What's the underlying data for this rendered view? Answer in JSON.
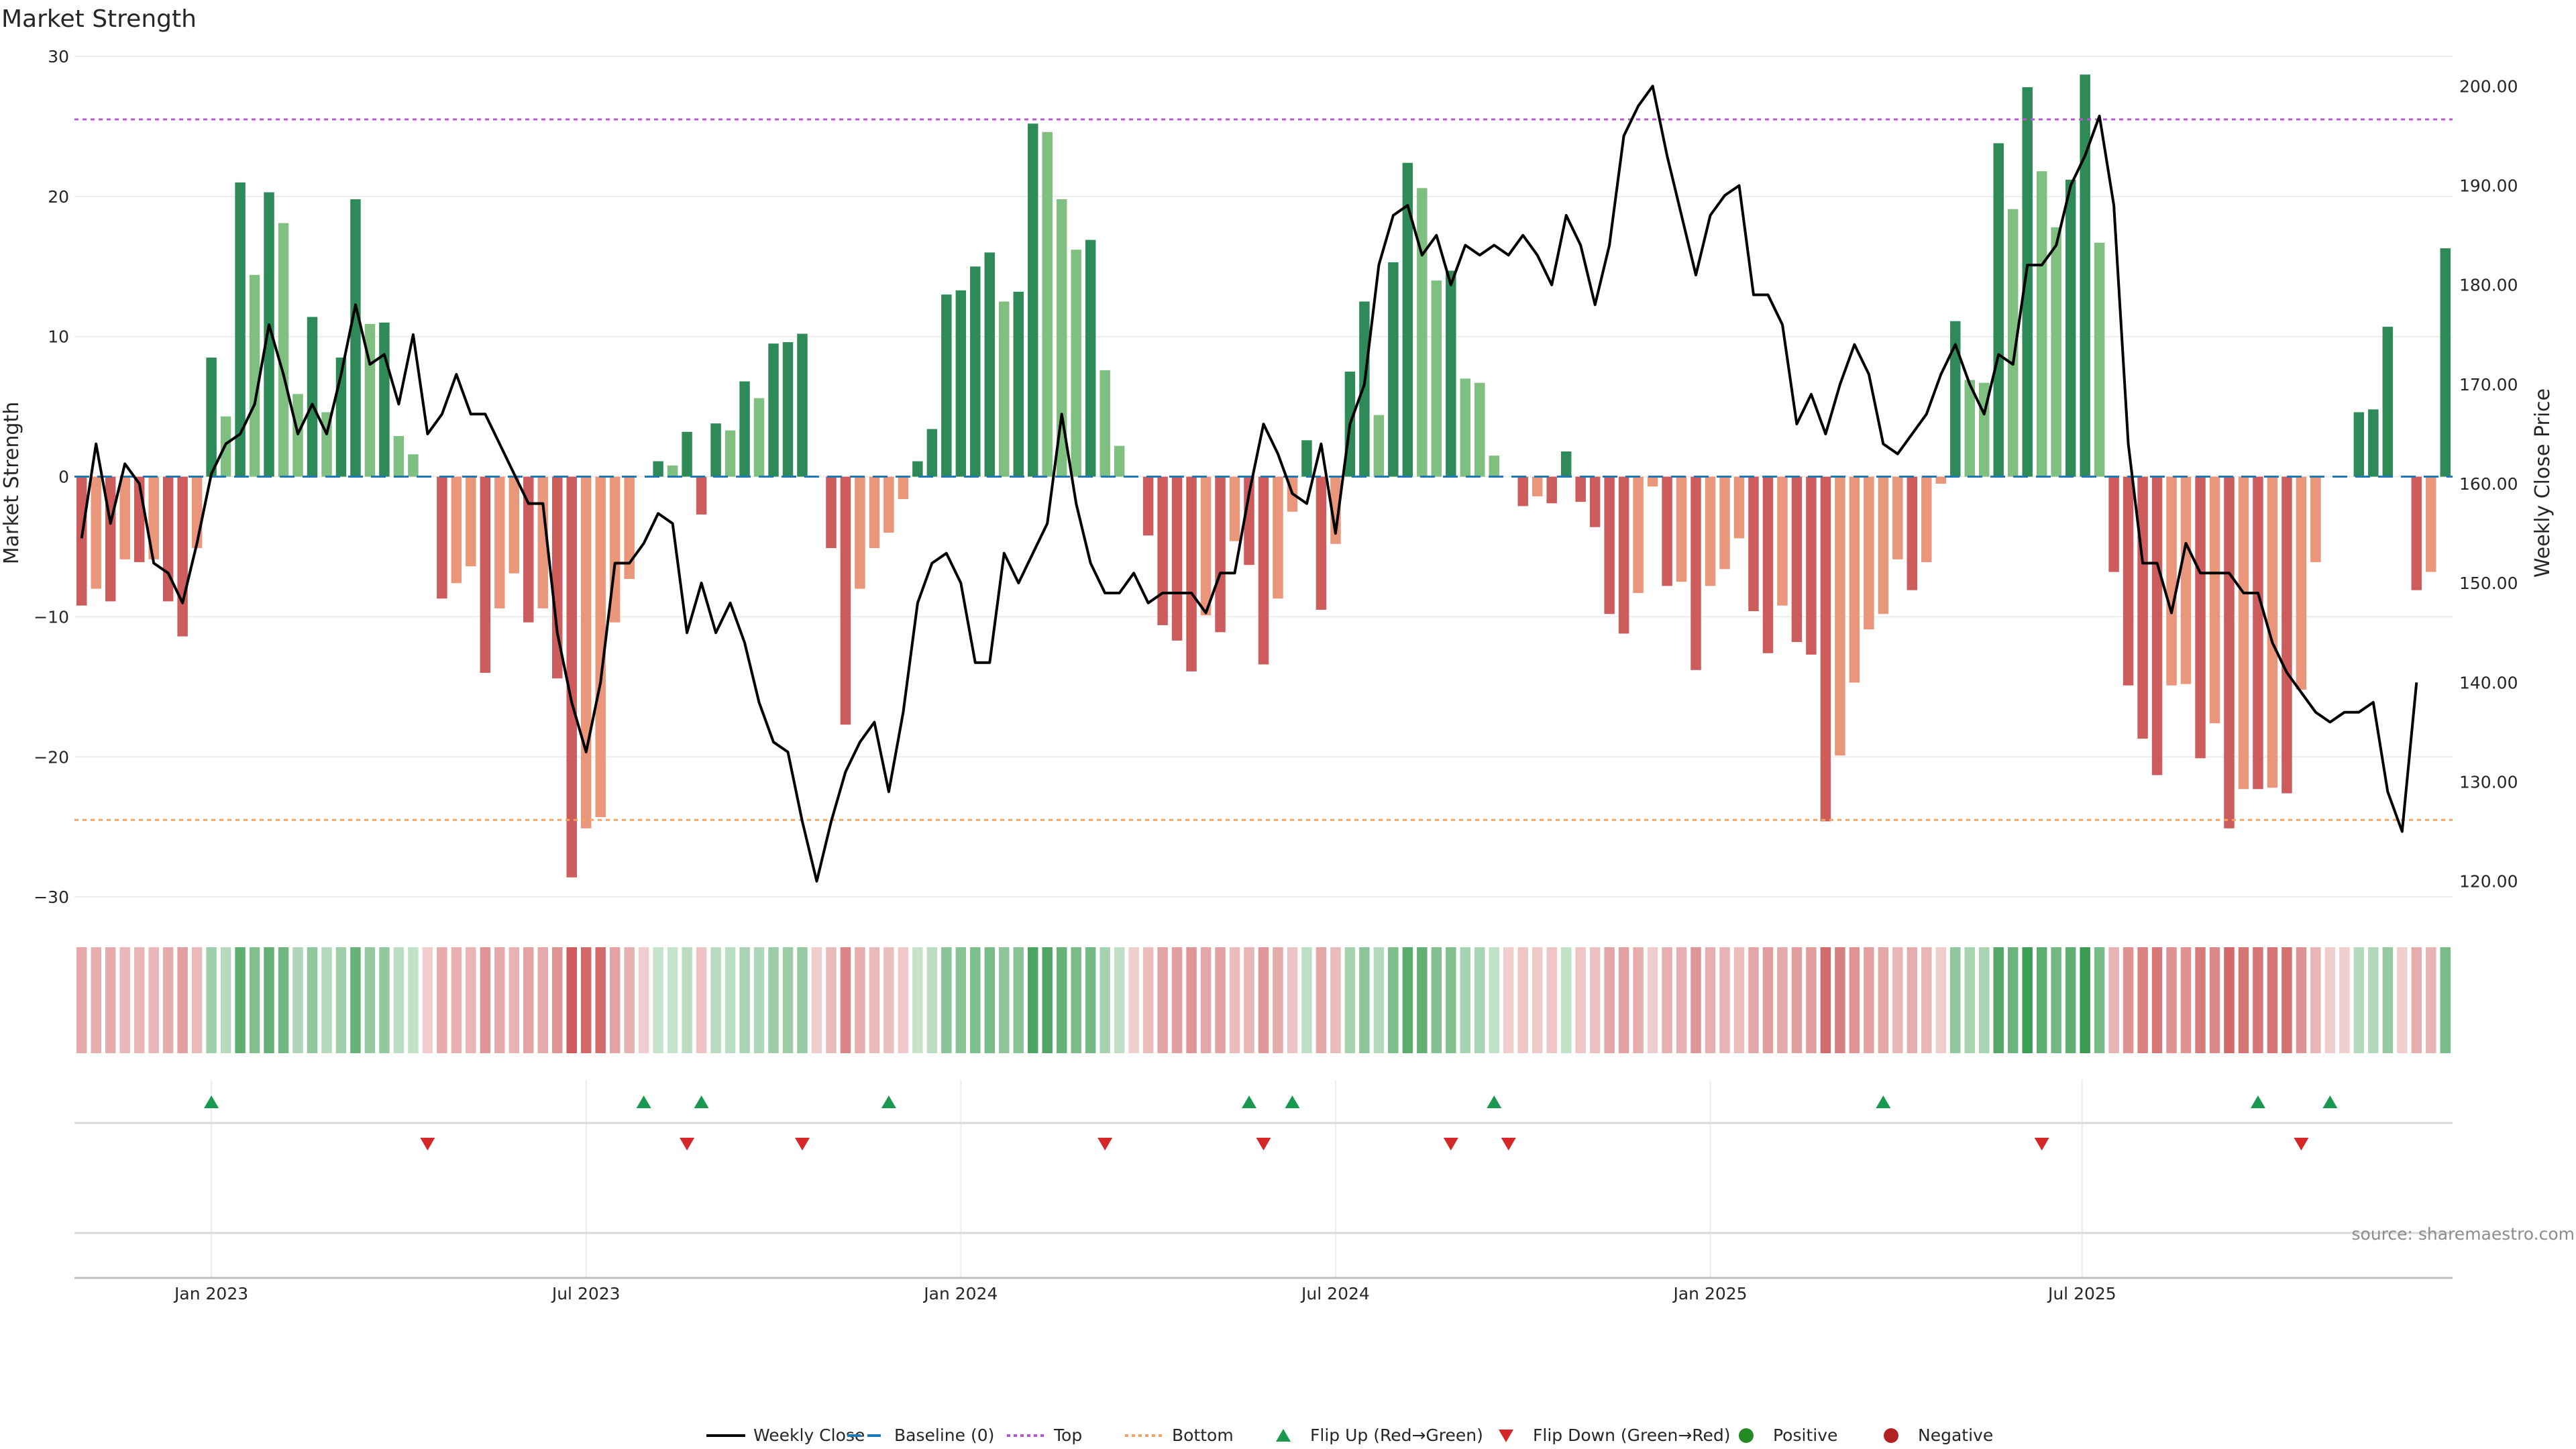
{
  "chart_data": {
    "type": "bar",
    "title": "Market Strength",
    "ylabel_left": "Market Strength",
    "ylabel_right": "Weekly Close Price",
    "ylim_left": [
      -31,
      30
    ],
    "ylim_right": [
      117,
      203
    ],
    "y_ticks_left": [
      "30",
      "20",
      "10",
      "0",
      "−10",
      "−20",
      "−30"
    ],
    "y_ticks_right": [
      "200.00",
      "190.00",
      "180.00",
      "170.00",
      "160.00",
      "150.00",
      "140.00",
      "130.00",
      "120.00"
    ],
    "x_ticks": [
      "Jan 2023",
      "Jul 2023",
      "Jan 2024",
      "Jul 2024",
      "Jan 2025",
      "Jul 2025"
    ],
    "x_tick_weeks": [
      9.5,
      35.5,
      61.5,
      87.5,
      113.5,
      139.3
    ],
    "top_level": 25.5,
    "bottom_level": -24.5,
    "colors": {
      "strong_green": "#2e8b57",
      "light_green": "#7fbf7f",
      "strong_red": "#cd5c5c",
      "light_red": "#e9967a",
      "line": "#000000",
      "baseline": "#1f77b4",
      "top": "#ba55d3",
      "bottom": "#f4a460",
      "flip_up": "#1a9850",
      "flip_down": "#d62728",
      "positive": "#228b22",
      "negative": "#b22222"
    },
    "strength": [
      -9.2,
      -8,
      -8.9,
      -5.9,
      -6.1,
      -5.9,
      -8.9,
      -11.4,
      -5.1,
      8.5,
      4.3,
      21,
      14.4,
      20.3,
      18.1,
      5.9,
      11.4,
      4.6,
      8.5,
      19.8,
      10.9,
      11,
      2.9,
      1.6,
      0,
      -8.7,
      -7.6,
      -6.4,
      -14,
      -9.4,
      -6.9,
      -10.4,
      -9.4,
      -14.4,
      -28.6,
      -25.1,
      -24.3,
      -10.4,
      -7.3,
      0,
      1.1,
      0.8,
      3.2,
      -2.7,
      3.8,
      3.3,
      6.8,
      5.6,
      9.5,
      9.6,
      10.2,
      0,
      -5.1,
      -17.7,
      -8,
      -5.1,
      -4,
      -1.6,
      1.1,
      3.4,
      13,
      13.3,
      15,
      16,
      12.5,
      13.2,
      25.2,
      24.6,
      19.8,
      16.2,
      16.9,
      7.6,
      2.2,
      0,
      -4.2,
      -10.6,
      -11.7,
      -13.9,
      -9.9,
      -11.1,
      -4.6,
      -6.3,
      -13.4,
      -8.7,
      -2.5,
      2.6,
      -9.5,
      -4.8,
      7.5,
      12.5,
      4.4,
      15.3,
      22.4,
      20.6,
      14,
      14.7,
      7,
      6.7,
      1.5,
      0,
      -2.1,
      -1.4,
      -1.9,
      1.8,
      -1.8,
      -3.6,
      -9.8,
      -11.2,
      -8.3,
      -0.7,
      -7.8,
      -7.5,
      -13.8,
      -7.8,
      -6.6,
      -4.4,
      -9.6,
      -12.6,
      -9.2,
      -11.8,
      -12.7,
      -24.6,
      -19.9,
      -14.7,
      -10.9,
      -9.8,
      -5.9,
      -8.1,
      -6.1,
      -0.5,
      11.1,
      6.9,
      6.7,
      23.8,
      19.1,
      27.8,
      21.8,
      17.8,
      21.2,
      28.7,
      16.7,
      -6.8,
      -14.9,
      -18.7,
      -21.3,
      -14.9,
      -14.8,
      -20.1,
      -17.6,
      -25.1,
      -22.3,
      -22.3,
      -22.2,
      -22.6,
      -15.2,
      -6.1,
      0,
      0,
      4.6,
      4.8,
      10.7,
      0,
      -8.1,
      -6.8,
      16.3
    ],
    "weekly_close": [
      154.5,
      164,
      156,
      162,
      160,
      152,
      151,
      148,
      154,
      161,
      164,
      165,
      168,
      176,
      171,
      165,
      168,
      165,
      171,
      178,
      172,
      173,
      168,
      175,
      165,
      167,
      171,
      167,
      167,
      164,
      161,
      158,
      158,
      145,
      138,
      133,
      140,
      152,
      152,
      154,
      157,
      156,
      145,
      150,
      145,
      148,
      144,
      138,
      134,
      133,
      126,
      120,
      126,
      131,
      134,
      136,
      129,
      137,
      148,
      152,
      153,
      150,
      142,
      142,
      153,
      150,
      153,
      156,
      167,
      158,
      152,
      149,
      149,
      151,
      148,
      149,
      149,
      149,
      147,
      151,
      151,
      159,
      166,
      163,
      159,
      158,
      164,
      155,
      166,
      170,
      182,
      187,
      188,
      183,
      185,
      180,
      184,
      183,
      184,
      183,
      185,
      183,
      180,
      187,
      184,
      178,
      184,
      195,
      198,
      200,
      193,
      187,
      181,
      187,
      189,
      190,
      179,
      179,
      176,
      166,
      169,
      165,
      170,
      174,
      171,
      164,
      163,
      165,
      167,
      171,
      174,
      170,
      167,
      173,
      172,
      182,
      182,
      184,
      190,
      193,
      197,
      188,
      164,
      152,
      152,
      147,
      154,
      151,
      151,
      151,
      149,
      149,
      144,
      141,
      139,
      137,
      136,
      137,
      137,
      138,
      129,
      125,
      140
    ],
    "marker_rows": [
      1,
      2
    ],
    "flip_up_weeks": [
      9,
      39,
      43,
      56,
      81,
      84,
      98,
      125,
      151,
      156
    ],
    "flip_down_weeks": [
      24,
      42,
      50,
      71,
      82,
      95,
      99,
      136,
      154
    ],
    "legend": [
      "Weekly Close",
      "Baseline (0)",
      "Top",
      "Bottom",
      "Flip Up (Red→Green)",
      "Flip Down (Green→Red)",
      "Positive",
      "Negative"
    ],
    "source": "source: sharemaestro.com"
  }
}
